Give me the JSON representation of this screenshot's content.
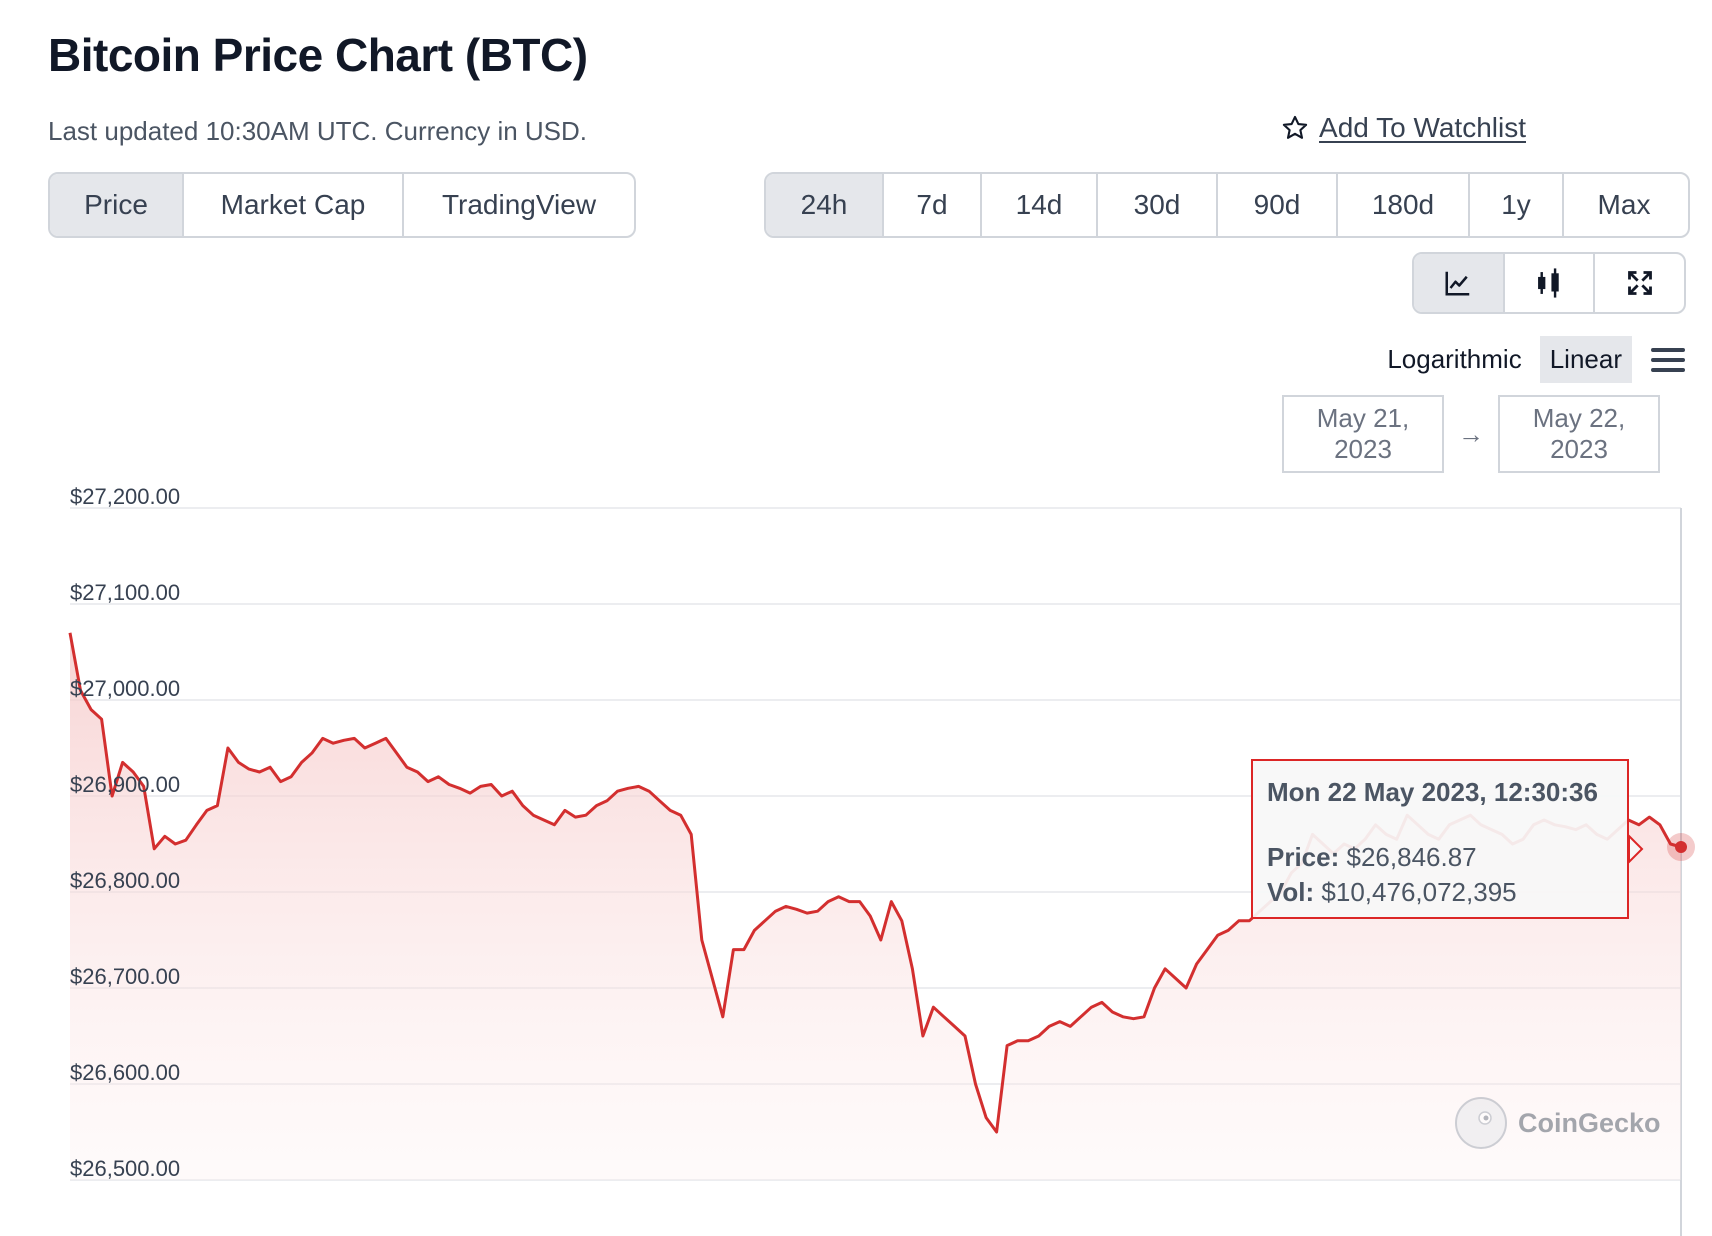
{
  "header": {
    "title": "Bitcoin Price Chart (BTC)",
    "subtitle": "Last updated 10:30AM UTC. Currency in USD.",
    "watchlist_label": "Add To Watchlist"
  },
  "view_tabs": [
    "Price",
    "Market Cap",
    "TradingView"
  ],
  "view_tabs_active": "Price",
  "range_tabs": [
    "24h",
    "7d",
    "14d",
    "30d",
    "90d",
    "180d",
    "1y",
    "Max"
  ],
  "range_tabs_active": "24h",
  "chart_mode_buttons": [
    {
      "name": "line-chart-icon",
      "active": true
    },
    {
      "name": "candlestick-icon",
      "active": false
    },
    {
      "name": "fullscreen-icon",
      "active": false
    }
  ],
  "scale": {
    "logarithmic_label": "Logarithmic",
    "linear_label": "Linear",
    "active": "Linear"
  },
  "date_range": {
    "from": "May 21, 2023",
    "to": "May 22, 2023",
    "arrow": "→"
  },
  "tooltip": {
    "time": "Mon 22 May 2023, 12:30:36",
    "price_label": "Price:",
    "price_value": "$26,846.87",
    "vol_label": "Vol:",
    "vol_value": "$10,476,072,395"
  },
  "watermark": "CoinGecko",
  "colors": {
    "line": "#d32f2f",
    "fill": "#f5c6c6",
    "grid": "#e5e7eb",
    "tab_active_bg": "#e5e7eb"
  },
  "chart_data": {
    "type": "area",
    "title": "",
    "xlabel": "",
    "ylabel": "",
    "y_ticks": [
      "$27,200.00",
      "$27,100.00",
      "$27,000.00",
      "$26,900.00",
      "$26,800.00",
      "$26,700.00",
      "$26,600.00",
      "$26,500.00"
    ],
    "ylim": [
      26490,
      27210
    ],
    "x_range": [
      "May 21, 2023",
      "May 22, 2023"
    ],
    "grid": true,
    "series": [
      {
        "values": [
          27070,
          27010,
          26990,
          26980,
          26900,
          26935,
          26925,
          26910,
          26845,
          26858,
          26850,
          26854,
          26870,
          26885,
          26890,
          26950,
          26935,
          26928,
          26925,
          26930,
          26915,
          26920,
          26935,
          26945,
          26960,
          26955,
          26958,
          26960,
          26950,
          26955,
          26960,
          26945,
          26930,
          26925,
          26915,
          26920,
          26912,
          26908,
          26903,
          26910,
          26912,
          26900,
          26905,
          26890,
          26880,
          26875,
          26870,
          26885,
          26878,
          26880,
          26890,
          26895,
          26905,
          26908,
          26910,
          26905,
          26895,
          26885,
          26880,
          26860,
          26750,
          26710,
          26670,
          26740,
          26740,
          26760,
          26770,
          26780,
          26785,
          26782,
          26778,
          26780,
          26790,
          26795,
          26790,
          26790,
          26775,
          26750,
          26790,
          26770,
          26720,
          26650,
          26680,
          26670,
          26660,
          26650,
          26600,
          26565,
          26550,
          26640,
          26645,
          26645,
          26650,
          26660,
          26665,
          26660,
          26670,
          26680,
          26685,
          26675,
          26670,
          26668,
          26670,
          26700,
          26720,
          26710,
          26700,
          26725,
          26740,
          26755,
          26760,
          26770,
          26770,
          26780,
          26790,
          26800,
          26820,
          26830,
          26860,
          26850,
          26840,
          26850,
          26845,
          26855,
          26870,
          26860,
          26855,
          26880,
          26870,
          26860,
          26855,
          26870,
          26875,
          26880,
          26870,
          26865,
          26860,
          26850,
          26855,
          26870,
          26875,
          26870,
          26868,
          26865,
          26870,
          26860,
          26855,
          26865,
          26875,
          26870,
          26878,
          26870,
          26850,
          26846.87
        ]
      }
    ],
    "highlight_point": {
      "date": "Mon 22 May 2023, 12:30:36",
      "price": 26846.87,
      "volume": 10476072395
    }
  }
}
